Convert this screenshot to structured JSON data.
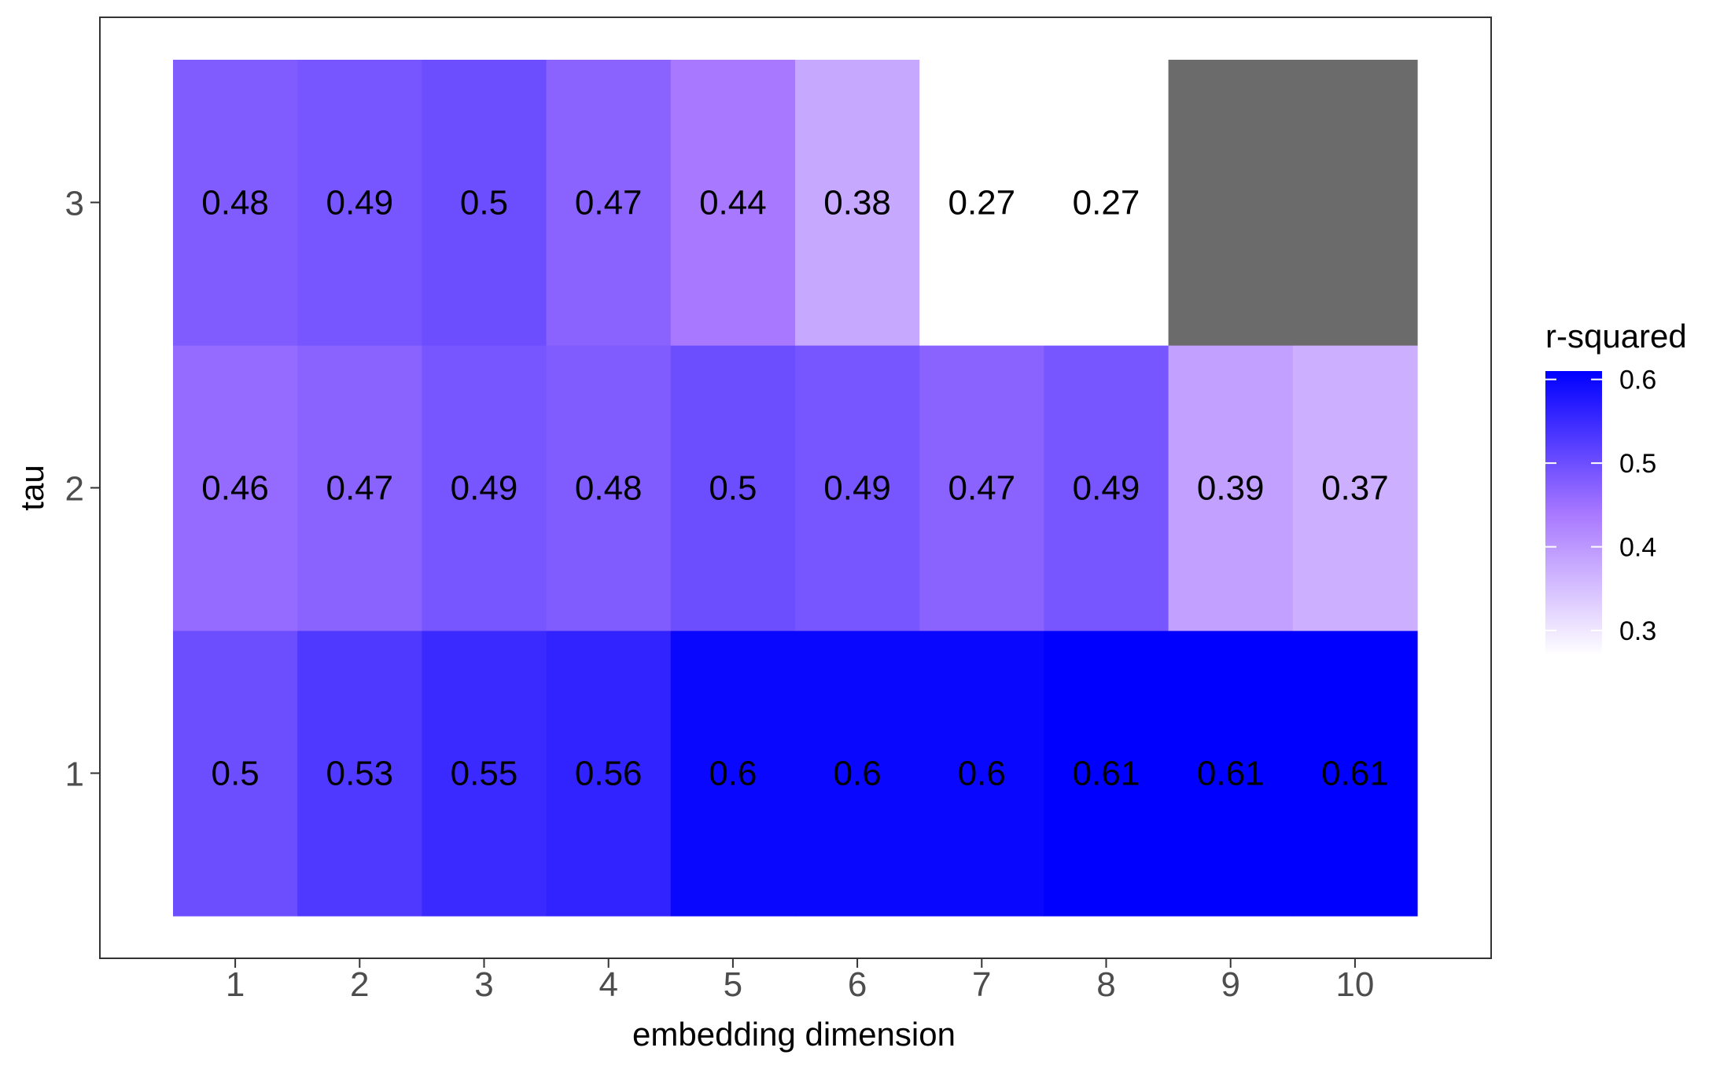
{
  "chart_data": {
    "type": "heatmap",
    "title": "",
    "xlabel": "embedding dimension",
    "ylabel": "tau",
    "x_categories": [
      "1",
      "2",
      "3",
      "4",
      "5",
      "6",
      "7",
      "8",
      "9",
      "10"
    ],
    "y_categories": [
      "1",
      "2",
      "3"
    ],
    "cells": [
      {
        "x": "1",
        "y": "1",
        "value": 0.5,
        "label": "0.5"
      },
      {
        "x": "2",
        "y": "1",
        "value": 0.53,
        "label": "0.53"
      },
      {
        "x": "3",
        "y": "1",
        "value": 0.55,
        "label": "0.55"
      },
      {
        "x": "4",
        "y": "1",
        "value": 0.56,
        "label": "0.56"
      },
      {
        "x": "5",
        "y": "1",
        "value": 0.6,
        "label": "0.6"
      },
      {
        "x": "6",
        "y": "1",
        "value": 0.6,
        "label": "0.6"
      },
      {
        "x": "7",
        "y": "1",
        "value": 0.6,
        "label": "0.6"
      },
      {
        "x": "8",
        "y": "1",
        "value": 0.61,
        "label": "0.61"
      },
      {
        "x": "9",
        "y": "1",
        "value": 0.61,
        "label": "0.61"
      },
      {
        "x": "10",
        "y": "1",
        "value": 0.61,
        "label": "0.61"
      },
      {
        "x": "1",
        "y": "2",
        "value": 0.46,
        "label": "0.46"
      },
      {
        "x": "2",
        "y": "2",
        "value": 0.47,
        "label": "0.47"
      },
      {
        "x": "3",
        "y": "2",
        "value": 0.49,
        "label": "0.49"
      },
      {
        "x": "4",
        "y": "2",
        "value": 0.48,
        "label": "0.48"
      },
      {
        "x": "5",
        "y": "2",
        "value": 0.5,
        "label": "0.5"
      },
      {
        "x": "6",
        "y": "2",
        "value": 0.49,
        "label": "0.49"
      },
      {
        "x": "7",
        "y": "2",
        "value": 0.47,
        "label": "0.47"
      },
      {
        "x": "8",
        "y": "2",
        "value": 0.49,
        "label": "0.49"
      },
      {
        "x": "9",
        "y": "2",
        "value": 0.39,
        "label": "0.39"
      },
      {
        "x": "10",
        "y": "2",
        "value": 0.37,
        "label": "0.37"
      },
      {
        "x": "1",
        "y": "3",
        "value": 0.48,
        "label": "0.48"
      },
      {
        "x": "2",
        "y": "3",
        "value": 0.49,
        "label": "0.49"
      },
      {
        "x": "3",
        "y": "3",
        "value": 0.5,
        "label": "0.5"
      },
      {
        "x": "4",
        "y": "3",
        "value": 0.47,
        "label": "0.47"
      },
      {
        "x": "5",
        "y": "3",
        "value": 0.44,
        "label": "0.44"
      },
      {
        "x": "6",
        "y": "3",
        "value": 0.38,
        "label": "0.38"
      },
      {
        "x": "7",
        "y": "3",
        "value": 0.27,
        "label": "0.27"
      },
      {
        "x": "8",
        "y": "3",
        "value": 0.27,
        "label": "0.27"
      },
      {
        "x": "9",
        "y": "3",
        "value": null,
        "label": ""
      },
      {
        "x": "10",
        "y": "3",
        "value": null,
        "label": ""
      }
    ],
    "color_scale": {
      "low_color": "#ffffff",
      "high_color": "#0000ff",
      "missing_color": "#6b6b6b",
      "domain": [
        0.27,
        0.61
      ]
    },
    "legend": {
      "title": "r-squared",
      "ticks": [
        0.3,
        0.4,
        0.5,
        0.6
      ],
      "tick_labels": [
        "0.3",
        "0.4",
        "0.5",
        "0.6"
      ],
      "placement": "right"
    },
    "grid": false
  }
}
